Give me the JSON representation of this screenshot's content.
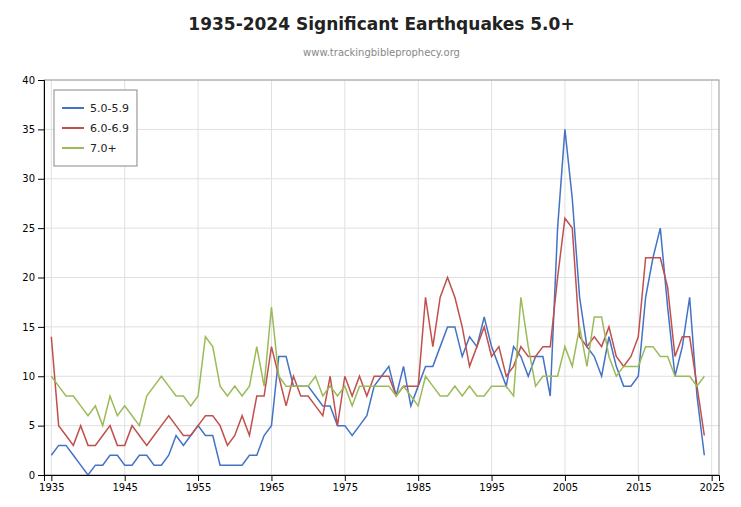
{
  "chart_data": {
    "type": "line",
    "title": "1935-2024 Significant Earthquakes 5.0+",
    "subtitle": "www.trackingbibleprophecy.org",
    "x": [
      1935,
      1936,
      1937,
      1938,
      1939,
      1940,
      1941,
      1942,
      1943,
      1944,
      1945,
      1946,
      1947,
      1948,
      1949,
      1950,
      1951,
      1952,
      1953,
      1954,
      1955,
      1956,
      1957,
      1958,
      1959,
      1960,
      1961,
      1962,
      1963,
      1964,
      1965,
      1966,
      1967,
      1968,
      1969,
      1970,
      1971,
      1972,
      1973,
      1974,
      1975,
      1976,
      1977,
      1978,
      1979,
      1980,
      1981,
      1982,
      1983,
      1984,
      1985,
      1986,
      1987,
      1988,
      1989,
      1990,
      1991,
      1992,
      1993,
      1994,
      1995,
      1996,
      1997,
      1998,
      1999,
      2000,
      2001,
      2002,
      2003,
      2004,
      2005,
      2006,
      2007,
      2008,
      2009,
      2010,
      2011,
      2012,
      2013,
      2014,
      2015,
      2016,
      2017,
      2018,
      2019,
      2020,
      2021,
      2022,
      2023,
      2024
    ],
    "series": [
      {
        "name": "5.0-5.9",
        "color": "#4472C4",
        "values": [
          2,
          3,
          3,
          2,
          1,
          0,
          1,
          1,
          2,
          2,
          1,
          1,
          2,
          2,
          1,
          1,
          2,
          4,
          3,
          4,
          5,
          4,
          4,
          1,
          1,
          1,
          1,
          2,
          2,
          4,
          5,
          12,
          12,
          9,
          9,
          9,
          8,
          7,
          7,
          5,
          5,
          4,
          5,
          6,
          9,
          10,
          11,
          8,
          11,
          7,
          9,
          11,
          11,
          13,
          15,
          15,
          12,
          14,
          13,
          16,
          13,
          11,
          9,
          13,
          12,
          10,
          12,
          12,
          8,
          25,
          35,
          28,
          18,
          13,
          12,
          10,
          14,
          11,
          9,
          9,
          10,
          18,
          22,
          25,
          17,
          10,
          13,
          18,
          8,
          2
        ]
      },
      {
        "name": "6.0-6.9",
        "color": "#C0504D",
        "values": [
          14,
          5,
          4,
          3,
          5,
          3,
          3,
          4,
          5,
          3,
          3,
          5,
          4,
          3,
          4,
          5,
          6,
          5,
          4,
          4,
          5,
          6,
          6,
          5,
          3,
          4,
          6,
          4,
          8,
          8,
          13,
          10,
          7,
          10,
          8,
          8,
          7,
          6,
          10,
          5,
          10,
          8,
          10,
          8,
          10,
          10,
          10,
          8,
          9,
          9,
          9,
          18,
          13,
          18,
          20,
          18,
          15,
          11,
          13,
          15,
          12,
          13,
          10,
          11,
          13,
          12,
          12,
          13,
          13,
          20,
          26,
          25,
          14,
          13,
          14,
          13,
          15,
          12,
          11,
          12,
          14,
          22,
          22,
          22,
          19,
          12,
          14,
          14,
          9,
          4
        ]
      },
      {
        "name": "7.0+",
        "color": "#9BBB59",
        "values": [
          10,
          9,
          8,
          8,
          7,
          6,
          7,
          5,
          8,
          6,
          7,
          6,
          5,
          8,
          9,
          10,
          9,
          8,
          8,
          7,
          8,
          14,
          13,
          9,
          8,
          9,
          8,
          9,
          13,
          9,
          17,
          10,
          9,
          9,
          9,
          9,
          10,
          8,
          9,
          8,
          9,
          7,
          9,
          9,
          9,
          9,
          9,
          8,
          9,
          8,
          7,
          10,
          9,
          8,
          8,
          9,
          8,
          9,
          8,
          8,
          9,
          9,
          9,
          8,
          18,
          13,
          9,
          10,
          10,
          10,
          13,
          11,
          15,
          11,
          16,
          16,
          12,
          10,
          11,
          11,
          11,
          13,
          13,
          12,
          12,
          10,
          10,
          10,
          9,
          10
        ]
      }
    ],
    "xlim": [
      1934,
      2026
    ],
    "ylim": [
      0,
      40
    ],
    "xticks": [
      1935,
      1945,
      1955,
      1965,
      1975,
      1985,
      1995,
      2005,
      2015,
      2025
    ],
    "yticks": [
      0,
      5,
      10,
      15,
      20,
      25,
      30,
      35,
      40
    ],
    "grid": true,
    "legend": "upper left"
  }
}
